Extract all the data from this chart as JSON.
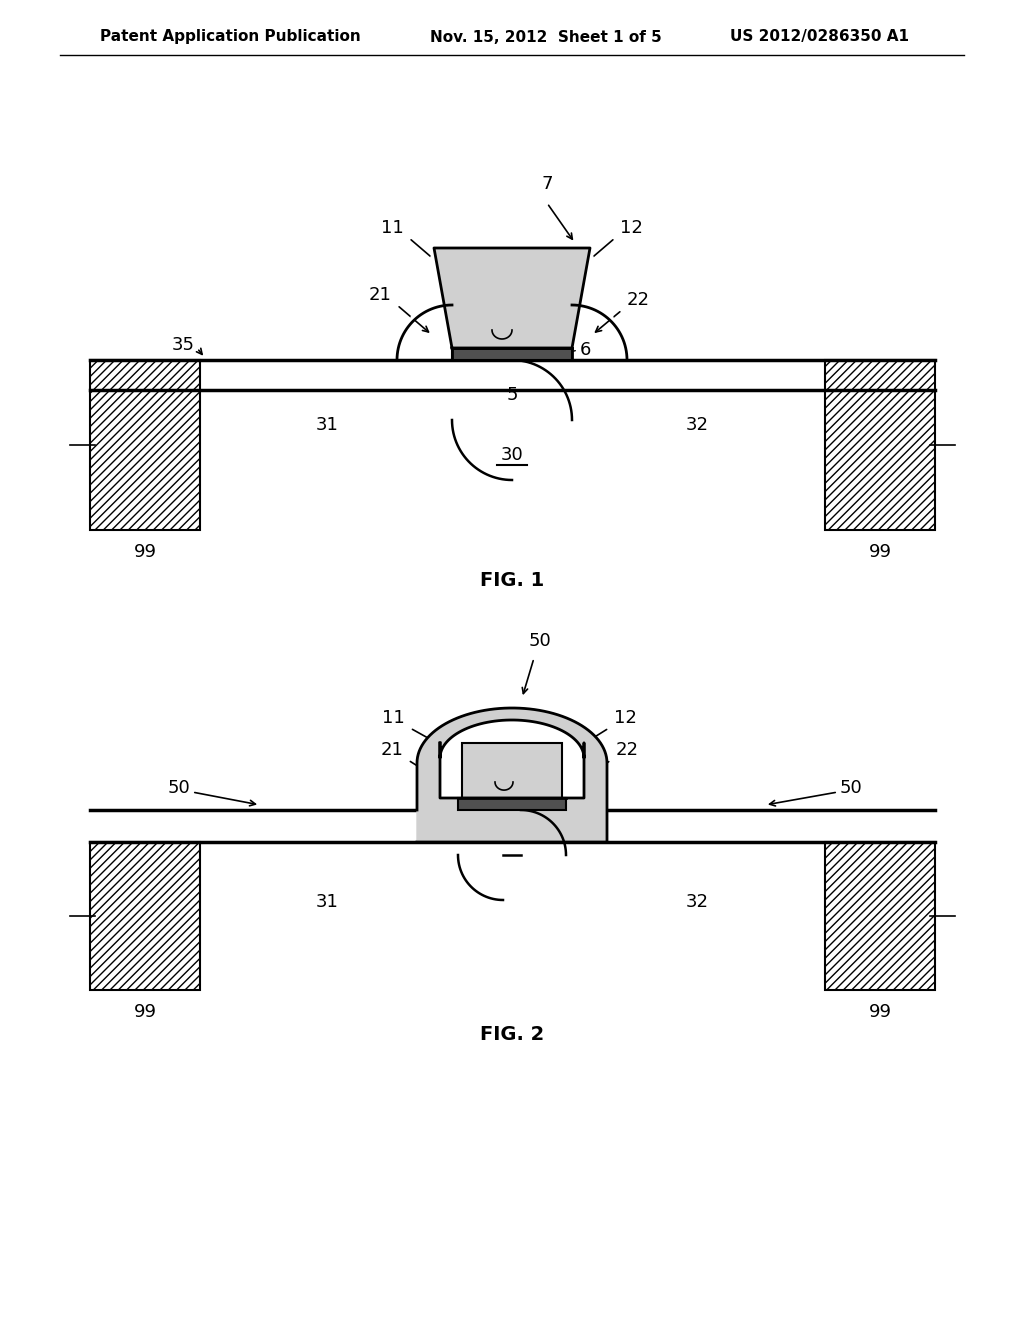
{
  "bg_color": "#ffffff",
  "line_color": "#000000",
  "gate_fill": "#d0d0d0",
  "gate_fill_dark": "#b0b0b0",
  "dark_bar": "#505050",
  "header_left": "Patent Application Publication",
  "header_mid": "Nov. 15, 2012  Sheet 1 of 5",
  "header_right": "US 2012/0286350 A1",
  "fig1_label": "FIG. 1",
  "fig2_label": "FIG. 2"
}
